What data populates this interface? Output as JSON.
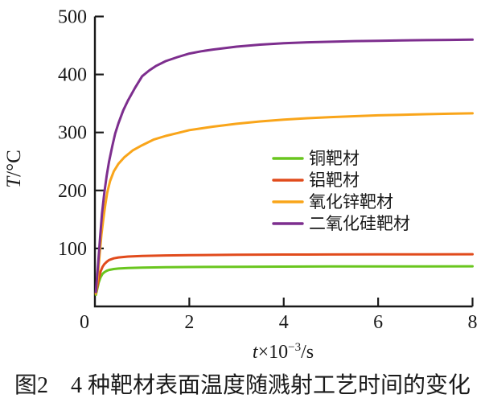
{
  "figure": {
    "caption": "图2　4 种靶材表面温度随溅射工艺时间的变化"
  },
  "axis_titles": {
    "ylabel_var": "T",
    "ylabel_rest": "/°C",
    "xlabel_var": "t",
    "xlabel_base": "×10",
    "xlabel_exp": "−3",
    "xlabel_unit": "/s"
  },
  "colors": {
    "axis": "#1a1a1a",
    "text": "#1a1a1a"
  },
  "chart_data": {
    "type": "line",
    "title": "",
    "xlabel": "t×10⁻³/s",
    "ylabel": "T/°C",
    "xlim": [
      0,
      8
    ],
    "ylim": [
      0,
      500
    ],
    "x_ticks": [
      0,
      2,
      4,
      6,
      8
    ],
    "y_ticks": [
      100,
      200,
      300,
      400,
      500
    ],
    "grid": false,
    "legend_position": "center-right",
    "series": [
      {
        "name": "铜靶材",
        "color": "#69c61e",
        "saturation_temp_c": 70,
        "points": [
          [
            0.02,
            20
          ],
          [
            0.05,
            30
          ],
          [
            0.08,
            41
          ],
          [
            0.12,
            50
          ],
          [
            0.16,
            56
          ],
          [
            0.2,
            59
          ],
          [
            0.25,
            61.5
          ],
          [
            0.3,
            63
          ],
          [
            0.4,
            64.5
          ],
          [
            0.5,
            65.3
          ],
          [
            0.7,
            66.2
          ],
          [
            1,
            67
          ],
          [
            1.5,
            67.6
          ],
          [
            2,
            68
          ],
          [
            3,
            68.4
          ],
          [
            4,
            68.7
          ],
          [
            5,
            68.9
          ],
          [
            6,
            69
          ],
          [
            7,
            69.1
          ],
          [
            8,
            69.2
          ]
        ]
      },
      {
        "name": "铝靶材",
        "color": "#e14b1c",
        "saturation_temp_c": 90,
        "points": [
          [
            0.02,
            22
          ],
          [
            0.05,
            34
          ],
          [
            0.08,
            48
          ],
          [
            0.12,
            60
          ],
          [
            0.16,
            68
          ],
          [
            0.2,
            73
          ],
          [
            0.25,
            77
          ],
          [
            0.3,
            80
          ],
          [
            0.4,
            83
          ],
          [
            0.5,
            84.5
          ],
          [
            0.7,
            86
          ],
          [
            1,
            87
          ],
          [
            1.5,
            88
          ],
          [
            2,
            88.5
          ],
          [
            3,
            89
          ],
          [
            4,
            89.4
          ],
          [
            5,
            89.6
          ],
          [
            6,
            89.8
          ],
          [
            7,
            89.9
          ],
          [
            8,
            90
          ]
        ]
      },
      {
        "name": "氧化锌靶材",
        "color": "#f9a51a",
        "saturation_temp_c": 333,
        "points": [
          [
            0.02,
            22
          ],
          [
            0.06,
            50
          ],
          [
            0.1,
            90
          ],
          [
            0.14,
            125
          ],
          [
            0.18,
            152
          ],
          [
            0.22,
            175
          ],
          [
            0.26,
            196
          ],
          [
            0.32,
            216
          ],
          [
            0.4,
            233
          ],
          [
            0.5,
            246
          ],
          [
            0.62,
            257
          ],
          [
            0.8,
            269
          ],
          [
            1,
            278
          ],
          [
            1.25,
            288
          ],
          [
            1.5,
            294
          ],
          [
            1.75,
            299
          ],
          [
            2,
            304
          ],
          [
            2.5,
            310
          ],
          [
            3,
            315
          ],
          [
            3.5,
            319
          ],
          [
            4,
            322
          ],
          [
            4.5,
            324.5
          ],
          [
            5,
            326.5
          ],
          [
            5.5,
            328
          ],
          [
            6,
            329.5
          ],
          [
            6.5,
            330.5
          ],
          [
            7,
            331.5
          ],
          [
            7.5,
            332.3
          ],
          [
            8,
            333
          ]
        ]
      },
      {
        "name": "二氧化硅靶材",
        "color": "#7d2e8e",
        "saturation_temp_c": 460,
        "points": [
          [
            0.02,
            25
          ],
          [
            0.07,
            75
          ],
          [
            0.11,
            120
          ],
          [
            0.15,
            160
          ],
          [
            0.2,
            196
          ],
          [
            0.25,
            226
          ],
          [
            0.3,
            250
          ],
          [
            0.37,
            277
          ],
          [
            0.43,
            298
          ],
          [
            0.5,
            316
          ],
          [
            0.6,
            338
          ],
          [
            0.7,
            355
          ],
          [
            0.85,
            377
          ],
          [
            1,
            397
          ],
          [
            1.15,
            407
          ],
          [
            1.3,
            415
          ],
          [
            1.5,
            423
          ],
          [
            1.75,
            430
          ],
          [
            2,
            436
          ],
          [
            2.25,
            440
          ],
          [
            2.5,
            443
          ],
          [
            3,
            448
          ],
          [
            3.5,
            451.5
          ],
          [
            4,
            454
          ],
          [
            4.5,
            455.5
          ],
          [
            5,
            456.5
          ],
          [
            5.5,
            457.5
          ],
          [
            6,
            458
          ],
          [
            6.5,
            458.7
          ],
          [
            7,
            459.2
          ],
          [
            7.5,
            459.7
          ],
          [
            8,
            460
          ]
        ]
      }
    ]
  }
}
